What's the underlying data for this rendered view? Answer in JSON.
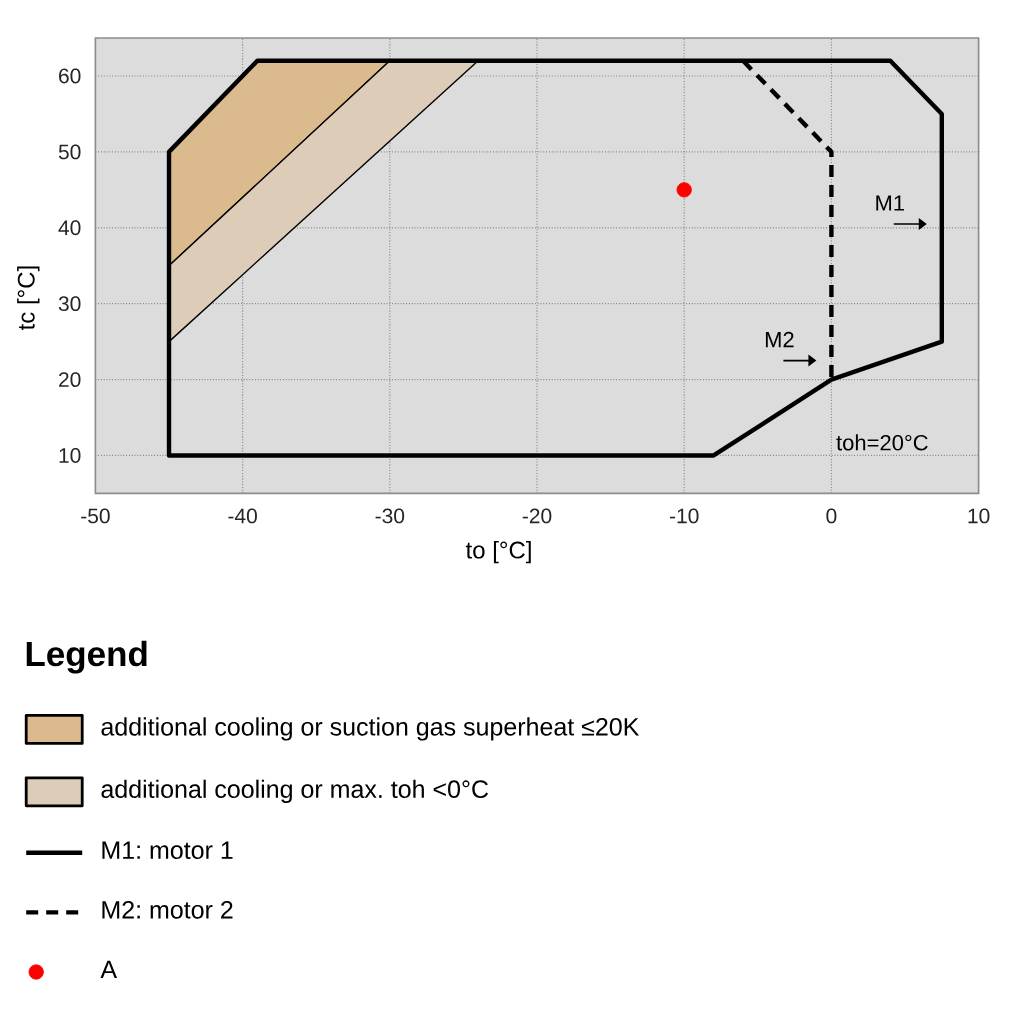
{
  "chart_data": {
    "type": "line",
    "xlabel": "to [°C]",
    "ylabel": "tc [°C]",
    "legend_title": "Legend",
    "xlim": [
      -50,
      10
    ],
    "ylim": [
      5,
      65
    ],
    "xticks": [
      -50,
      -40,
      -30,
      -20,
      -10,
      0,
      10
    ],
    "yticks": [
      10,
      20,
      30,
      40,
      50,
      60
    ],
    "grid": true,
    "legend": "bottom",
    "annotations": [
      {
        "text": "M1",
        "x": 7.5,
        "y": 40.5
      },
      {
        "text": "M2",
        "x": 0,
        "y": 22.5
      },
      "toh=20°C"
    ],
    "series": [
      {
        "name": "additional cooling or suction gas superheat ≤20K",
        "type": "area",
        "color": "#dbbb8e",
        "x": [
          -45,
          -39,
          -30,
          -45
        ],
        "values": [
          50,
          62,
          62,
          35
        ]
      },
      {
        "name": "additional cooling or max. toh <0°C",
        "type": "area",
        "color": "#ddcdb8",
        "x": [
          -45,
          -30,
          -24,
          -45
        ],
        "values": [
          35,
          62,
          62,
          25
        ]
      },
      {
        "name": "M1: motor 1",
        "color": "#000000",
        "line_style": "solid",
        "x": [
          -45,
          -45,
          -39,
          4,
          7.5,
          7.5,
          0,
          -8,
          -45
        ],
        "values": [
          10,
          50,
          62,
          62,
          55,
          25,
          20,
          10,
          10
        ]
      },
      {
        "name": "M2: motor 2",
        "color": "#000000",
        "line_style": "dashed",
        "x": [
          -6,
          0,
          0
        ],
        "values": [
          62,
          50,
          20
        ]
      },
      {
        "name": "A",
        "type": "scatter",
        "color": "#ff0000",
        "marker": "circle",
        "x": [
          -10
        ],
        "values": [
          45
        ]
      }
    ]
  }
}
